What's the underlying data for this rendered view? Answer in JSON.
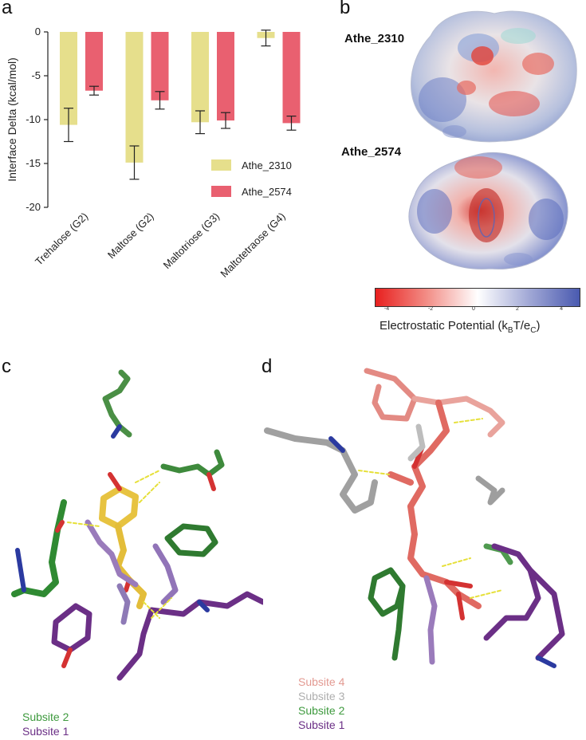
{
  "panels": {
    "a": "a",
    "b": "b",
    "c": "c",
    "d": "d"
  },
  "chart_data": {
    "type": "bar",
    "categories": [
      "Trehalose (G2)",
      "Maltose (G2)",
      "Maltotriose (G3)",
      "Maltotetraose (G4)"
    ],
    "series": [
      {
        "name": "Athe_2310",
        "color": "#e6df8c",
        "values": [
          -10.6,
          -14.9,
          -10.3,
          -0.7
        ],
        "errors": [
          1.9,
          1.9,
          1.3,
          0.9
        ]
      },
      {
        "name": "Athe_2574",
        "color": "#e96070",
        "values": [
          -6.7,
          -7.8,
          -10.1,
          -10.4
        ],
        "errors": [
          0.5,
          1.0,
          0.9,
          0.8
        ]
      }
    ],
    "ylabel": "Interface Delta (kcal/mol)",
    "ylim": [
      -20,
      0
    ],
    "yticks": [
      0,
      -5,
      -10,
      -15,
      -20
    ],
    "legend": "lower-right",
    "grid": false
  },
  "electrostatics": {
    "protein_top": "Athe_2310",
    "protein_bottom": "Athe_2574",
    "colorbar_ticks": [
      "-4",
      "-2",
      "0",
      "2",
      "4"
    ],
    "colorbar_label_main": "Electrostatic Potential (k",
    "colorbar_label_sub1": "B",
    "colorbar_label_mid": "T/e",
    "colorbar_label_sub2": "C",
    "colorbar_label_end": ")"
  },
  "legend_c": [
    {
      "label": "Subsite 2",
      "color": "#3e9a3e"
    },
    {
      "label": "Subsite 1",
      "color": "#6b2f86"
    }
  ],
  "legend_d": [
    {
      "label": "Subsite 4",
      "color": "#e39a92"
    },
    {
      "label": "Subsite 3",
      "color": "#aeaeae"
    },
    {
      "label": "Subsite 2",
      "color": "#3e9a3e"
    },
    {
      "label": "Subsite 1",
      "color": "#6b2f86"
    }
  ]
}
